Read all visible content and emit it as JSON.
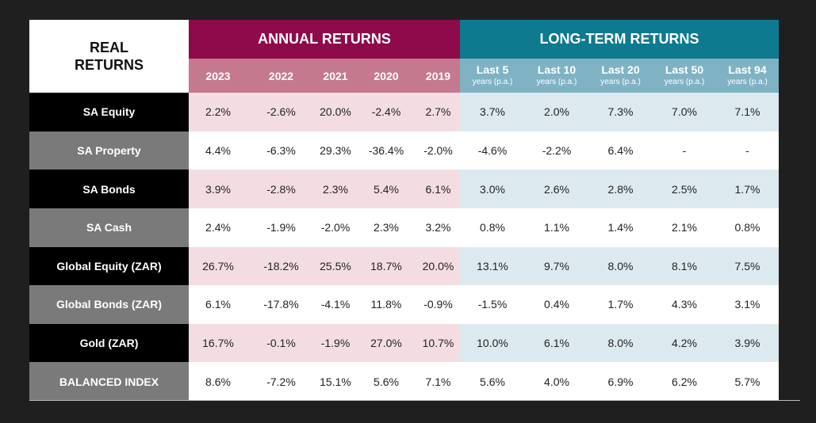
{
  "chart_data": {
    "type": "table",
    "corner_label": [
      "REAL",
      "RETURNS"
    ],
    "groups": [
      {
        "name": "ANNUAL RETURNS",
        "color": "#8e0a4a",
        "header_color": "#c5798e"
      },
      {
        "name": "LONG-TERM RETURNS",
        "color": "#0d7a90",
        "header_color": "#7fb3c4"
      }
    ],
    "columns": [
      {
        "label": "2023",
        "sub": ""
      },
      {
        "label": "2022",
        "sub": ""
      },
      {
        "label": "2021",
        "sub": ""
      },
      {
        "label": "2020",
        "sub": ""
      },
      {
        "label": "2019",
        "sub": ""
      },
      {
        "label": "Last 5",
        "sub": "years (p.a.)"
      },
      {
        "label": "Last 10",
        "sub": "years (p.a.)"
      },
      {
        "label": "Last 20",
        "sub": "years (p.a.)"
      },
      {
        "label": "Last 50",
        "sub": "years (p.a.)"
      },
      {
        "label": "Last 94",
        "sub": "years (p.a.)"
      }
    ],
    "rows": [
      {
        "label": "SA Equity",
        "values": [
          "2.2%",
          "-2.6%",
          "20.0%",
          "-2.4%",
          "2.7%",
          "3.7%",
          "2.0%",
          "7.3%",
          "7.0%",
          "7.1%"
        ]
      },
      {
        "label": "SA Property",
        "values": [
          "4.4%",
          "-6.3%",
          "29.3%",
          "-36.4%",
          "-2.0%",
          "-4.6%",
          "-2.2%",
          "6.4%",
          "-",
          "-"
        ]
      },
      {
        "label": "SA Bonds",
        "values": [
          "3.9%",
          "-2.8%",
          "2.3%",
          "5.4%",
          "6.1%",
          "3.0%",
          "2.6%",
          "2.8%",
          "2.5%",
          "1.7%"
        ]
      },
      {
        "label": "SA Cash",
        "values": [
          "2.4%",
          "-1.9%",
          "-2.0%",
          "2.3%",
          "3.2%",
          "0.8%",
          "1.1%",
          "1.4%",
          "2.1%",
          "0.8%"
        ]
      },
      {
        "label": "Global Equity (ZAR)",
        "values": [
          "26.7%",
          "-18.2%",
          "25.5%",
          "18.7%",
          "20.0%",
          "13.1%",
          "9.7%",
          "8.0%",
          "8.1%",
          "7.5%"
        ]
      },
      {
        "label": "Global Bonds (ZAR)",
        "values": [
          "6.1%",
          "-17.8%",
          "-4.1%",
          "11.8%",
          "-0.9%",
          "-1.5%",
          "0.4%",
          "1.7%",
          "4.3%",
          "3.1%"
        ]
      },
      {
        "label": "Gold (ZAR)",
        "values": [
          "16.7%",
          "-0.1%",
          "-1.9%",
          "27.0%",
          "10.7%",
          "10.0%",
          "6.1%",
          "8.0%",
          "4.2%",
          "3.9%"
        ]
      },
      {
        "label": "BALANCED INDEX",
        "values": [
          "8.6%",
          "-7.2%",
          "15.1%",
          "5.6%",
          "7.1%",
          "5.6%",
          "4.0%",
          "6.9%",
          "6.2%",
          "5.7%"
        ]
      }
    ]
  }
}
